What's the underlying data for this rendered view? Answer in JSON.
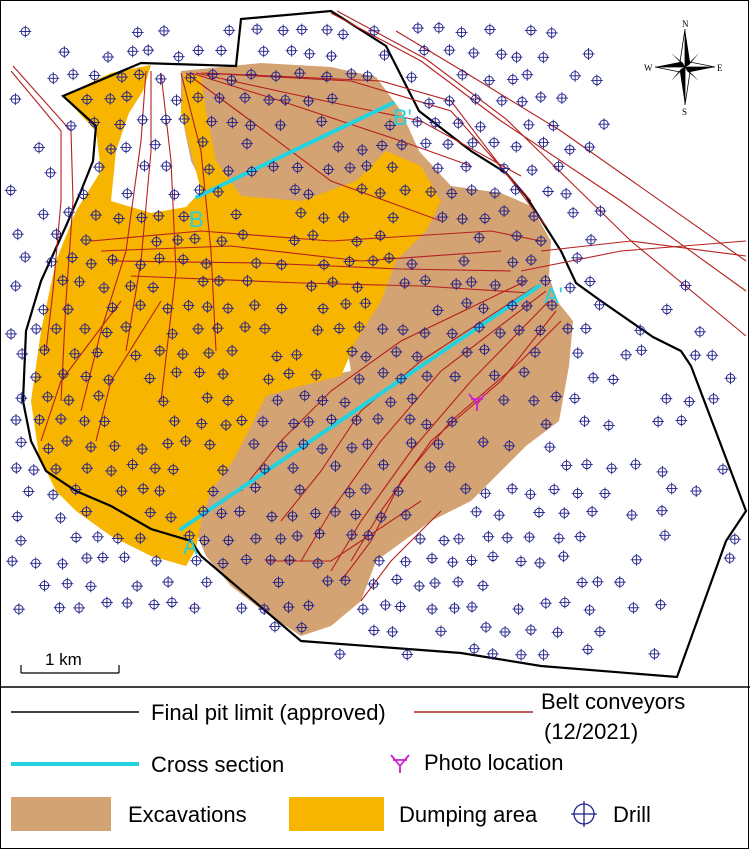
{
  "map": {
    "section_labels": {
      "a": "A",
      "a_prime": "A'",
      "b": "B",
      "b_prime": "B'"
    },
    "compass": {
      "n": "N",
      "s": "S",
      "e": "E",
      "w": "W"
    },
    "scale_bar": {
      "label": "1 km"
    }
  },
  "legend": {
    "final_pit_limit": "Final pit limit (approved)",
    "belt_conveyors_line1": "Belt conveyors",
    "belt_conveyors_line2": "(12/2021)",
    "cross_section": "Cross section",
    "photo_location": "Photo location",
    "excavations": "Excavations",
    "dumping_area": "Dumping area",
    "drill": "Drill"
  },
  "colors": {
    "excavations": "#d4a373",
    "dumping_area": "#f7b500",
    "cross_section": "#22d3df",
    "belt_conveyors": "#b42020",
    "final_pit_limit": "#000000",
    "drill": "#1f1f8a",
    "photo_location": "#cc22cc"
  }
}
